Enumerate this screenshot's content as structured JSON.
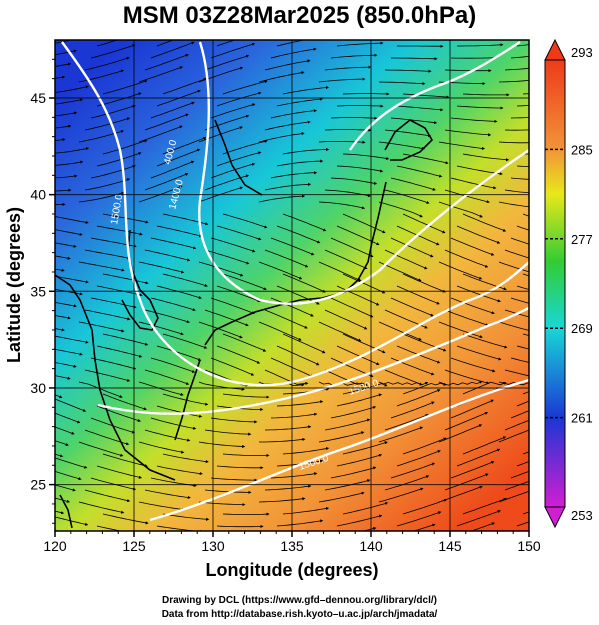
{
  "title": "MSM 03Z28Mar2025 (850.0hPa)",
  "xlabel": "Longitude (degrees)",
  "ylabel": "Latitude  (degrees)",
  "x_ticks": [
    "120",
    "125",
    "130",
    "135",
    "140",
    "145",
    "150"
  ],
  "y_ticks": [
    "25",
    "30",
    "35",
    "40",
    "45"
  ],
  "colorbar": {
    "ticks": [
      "293",
      "285",
      "277",
      "269",
      "261",
      "253"
    ],
    "min": 253,
    "max": 293
  },
  "contour_labels": [
    "400.0",
    "1400.0",
    "1500.0",
    "1500.0",
    "1500.0"
  ],
  "credits": {
    "line1": "Drawing by DCL (https://www.gfd–dennou.org/library/dcl/)",
    "line2": "Data from http://database.rish.kyoto–u.ac.jp/arch/jmadata/"
  },
  "map": {
    "lon_range": [
      120,
      150
    ],
    "lat_range": [
      22.6,
      48
    ],
    "variable": "temperature (K)",
    "overlay": [
      "streamlines",
      "geopotential height contours"
    ]
  },
  "colors": {
    "magenta": "#d21ed2",
    "blue": "#1a37d4",
    "cyan": "#18d7d7",
    "green": "#33cc33",
    "yellow": "#e8e81a",
    "orange": "#f29438",
    "red": "#ee3a1a"
  }
}
